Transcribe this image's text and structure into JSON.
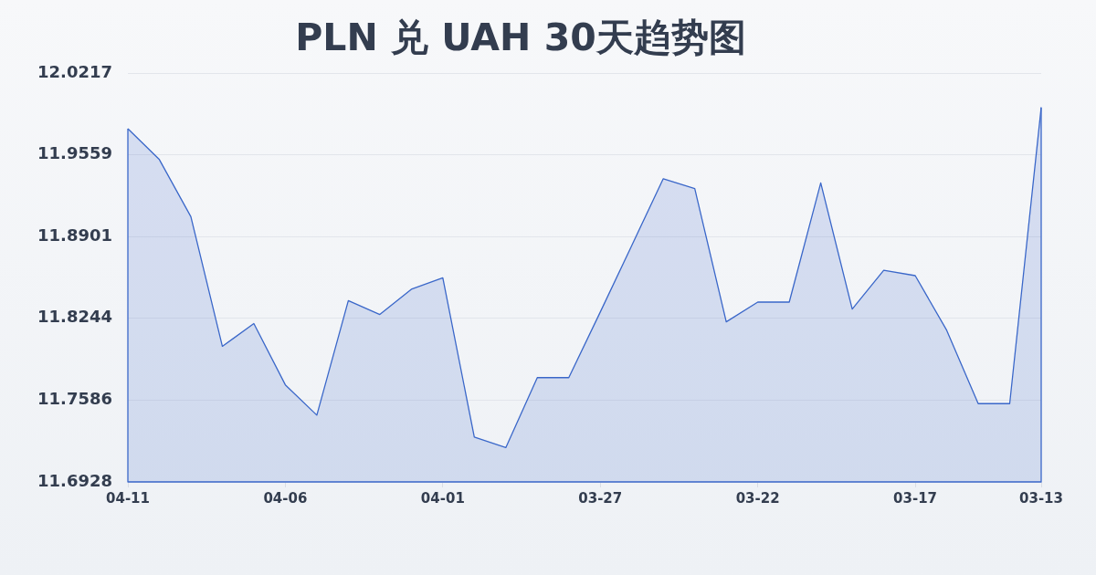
{
  "chart_data": {
    "type": "area",
    "title": "PLN 兑 UAH 30天趋势图",
    "categories": [
      "04-11",
      null,
      null,
      null,
      null,
      "04-06",
      null,
      null,
      null,
      null,
      "04-01",
      null,
      null,
      null,
      null,
      "03-27",
      null,
      null,
      null,
      null,
      "03-22",
      null,
      null,
      null,
      null,
      "03-17",
      null,
      null,
      null,
      "03-13"
    ],
    "values": [
      11.9771,
      11.9522,
      11.9063,
      11.8019,
      11.8202,
      11.7709,
      11.7465,
      11.8387,
      11.8275,
      11.8478,
      11.857,
      11.7289,
      11.7204,
      11.7767,
      11.7767,
      11.8295,
      11.8831,
      11.9368,
      11.9288,
      11.8216,
      11.8375,
      11.8375,
      11.9334,
      11.8319,
      11.8631,
      11.8588,
      11.8148,
      11.7558,
      11.7558,
      11.9942
    ],
    "color": "#3a67c9",
    "ylim": [
      11.6928,
      12.0217
    ],
    "yticks": [
      11.6928,
      11.7586,
      11.8244,
      11.8901,
      11.9559,
      12.0217
    ],
    "grid": "y",
    "marker": "none"
  }
}
